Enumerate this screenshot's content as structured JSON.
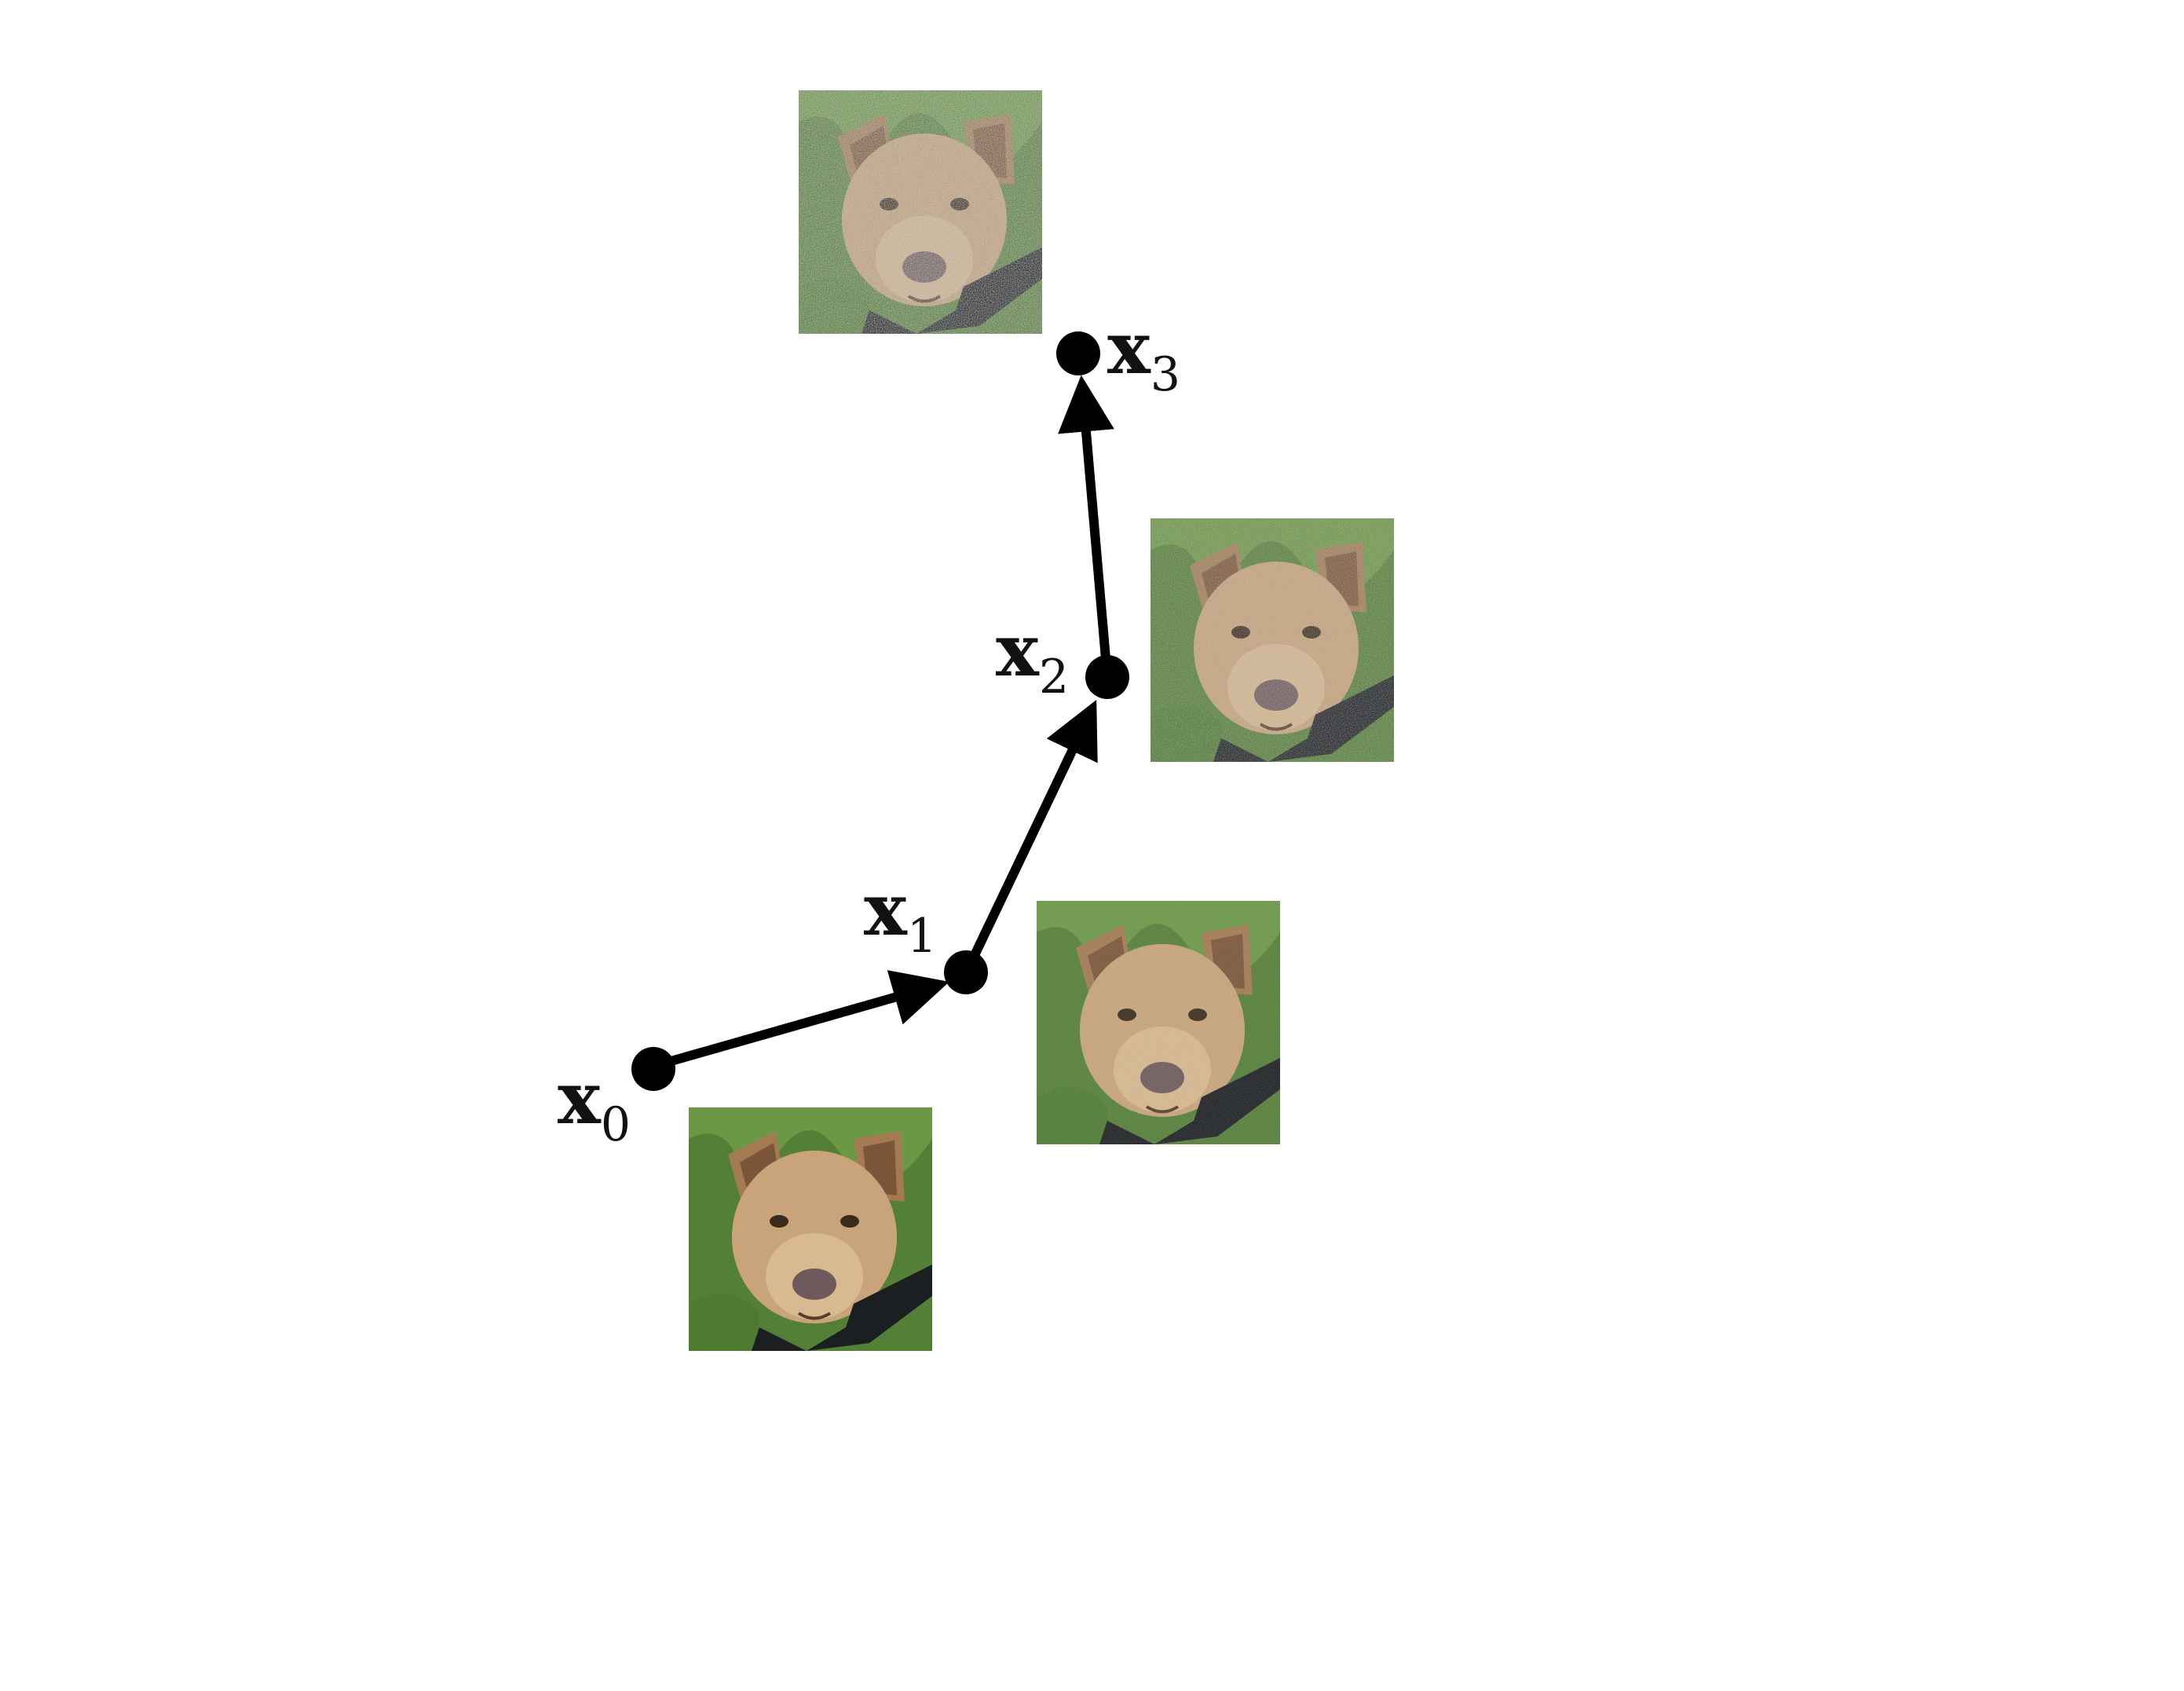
{
  "nodes": [
    {
      "id": "x0",
      "label": "x",
      "subscript": "0",
      "noise": 0.0
    },
    {
      "id": "x1",
      "label": "x",
      "subscript": "1",
      "noise": 0.25
    },
    {
      "id": "x2",
      "label": "x",
      "subscript": "2",
      "noise": 0.55
    },
    {
      "id": "x3",
      "label": "x",
      "subscript": "3",
      "noise": 0.85
    }
  ],
  "edges": [
    {
      "from": "x0",
      "to": "x1"
    },
    {
      "from": "x1",
      "to": "x2"
    },
    {
      "from": "x2",
      "to": "x3"
    }
  ],
  "colors": {
    "ink": "#000000",
    "grass": "#5e8a3c",
    "fur": "#c9a47a"
  }
}
